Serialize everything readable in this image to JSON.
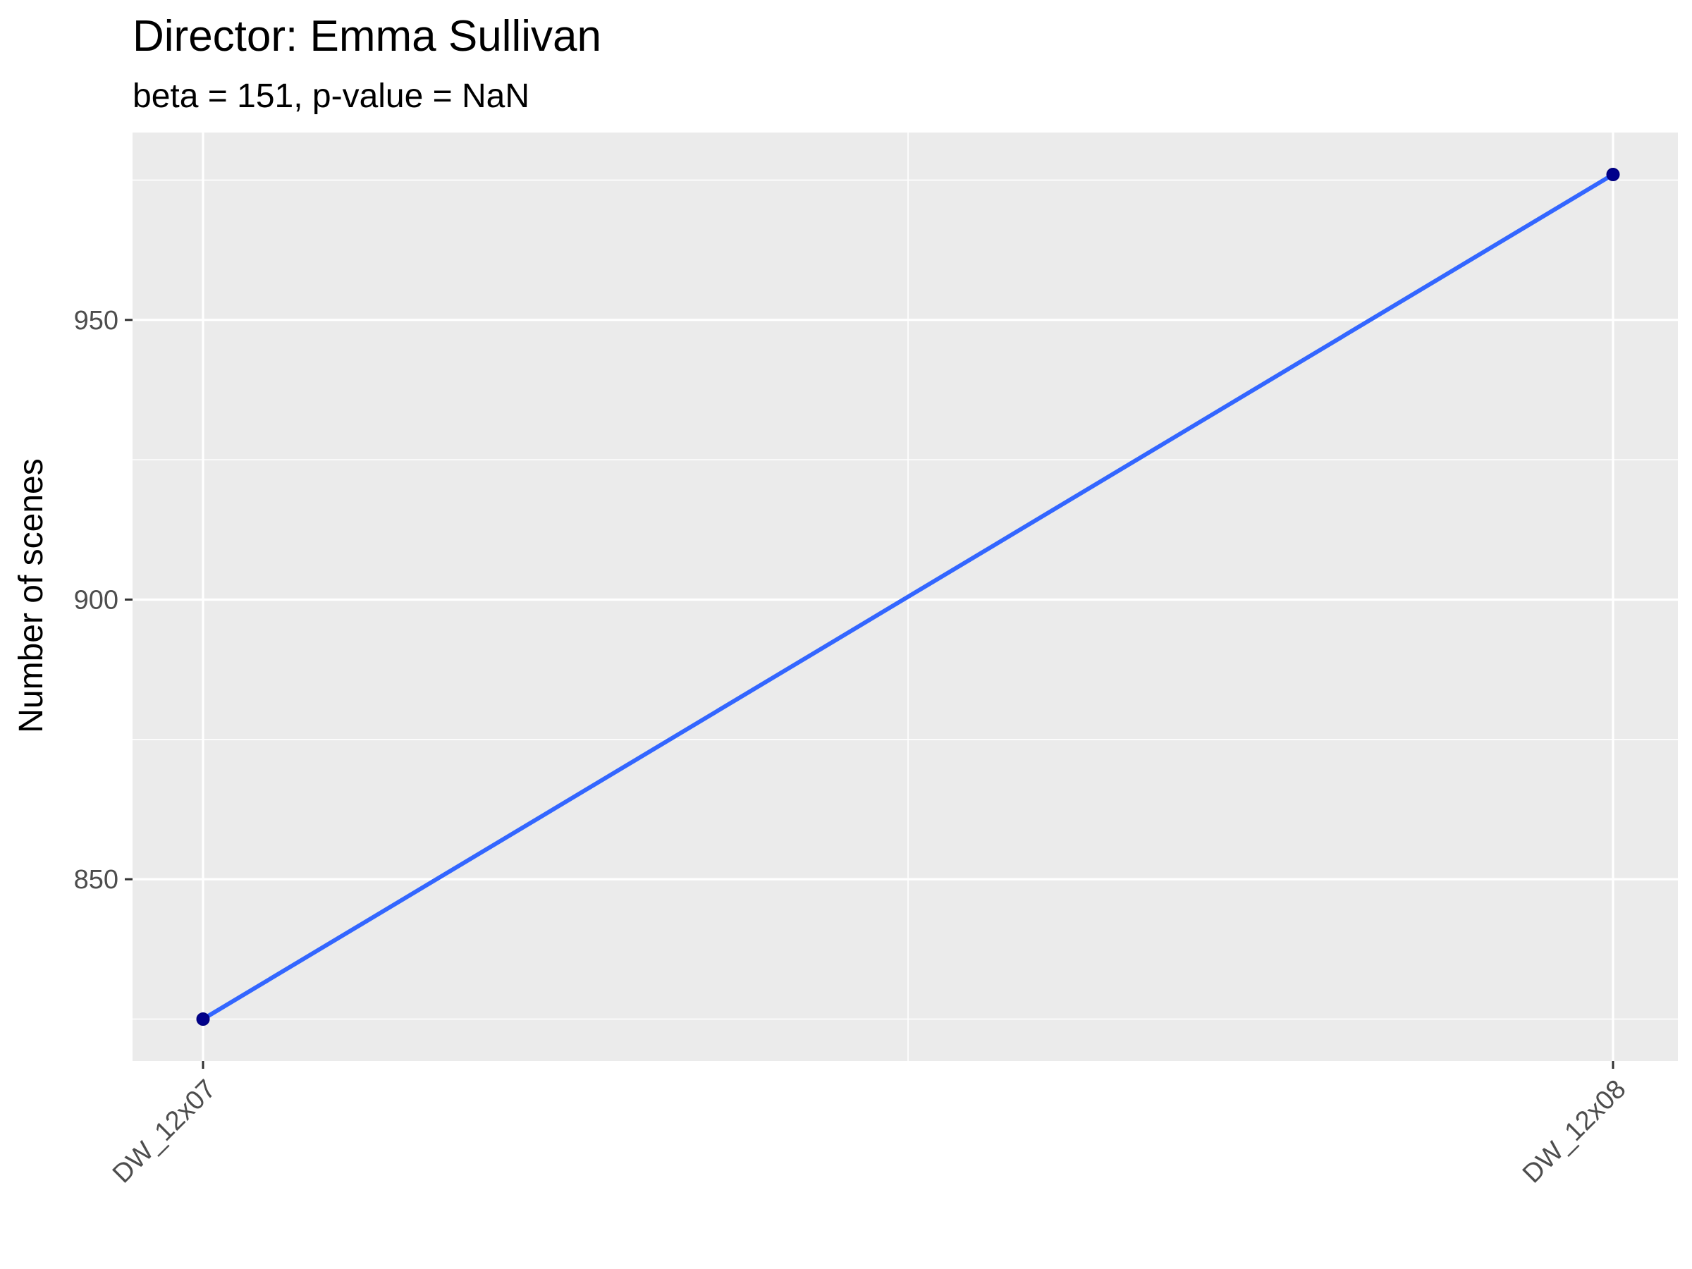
{
  "chart_data": {
    "type": "line",
    "title": "Director: Emma Sullivan",
    "subtitle": "beta = 151, p-value = NaN",
    "xlabel": "",
    "ylabel": "Number of scenes",
    "categories": [
      "DW_12x07",
      "DW_12x08"
    ],
    "series": [
      {
        "values": [
          825,
          976
        ]
      }
    ],
    "ylim": [
      817.5,
      983.5
    ],
    "y_ticks": [
      850,
      900,
      950
    ],
    "y_minor_ticks": [
      825,
      875,
      925,
      975
    ],
    "grid": true,
    "legend": "none",
    "colors": {
      "panel": "#ebebeb",
      "grid": "#ffffff",
      "line": "#3366ff",
      "point_fill": "#00008b",
      "point_stroke": "#000080",
      "tick": "#333333"
    }
  }
}
